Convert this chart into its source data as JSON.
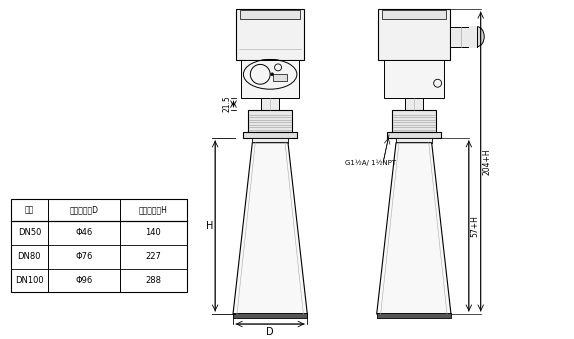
{
  "bg_color": "#ffffff",
  "line_color": "#000000",
  "gray_color": "#aaaaaa",
  "table": {
    "headers": [
      "法兰",
      "喇叭口直径D",
      "喇叭口高度H"
    ],
    "rows": [
      [
        "DN50",
        "Φ46",
        "140"
      ],
      [
        "DN80",
        "Φ76",
        "227"
      ],
      [
        "DN100",
        "Φ96",
        "288"
      ]
    ]
  },
  "dim_21_5": "21.5",
  "dim_H": "H",
  "dim_D": "D",
  "dim_204H": "204+H",
  "dim_57H": "57+H",
  "thread_label": "G1½A/ 1½NPT"
}
